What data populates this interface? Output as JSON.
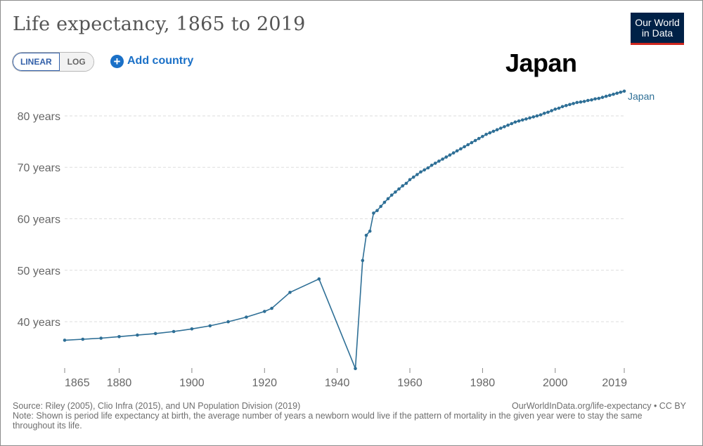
{
  "header": {
    "title": "Life expectancy, 1865 to 2019",
    "logo_line1": "Our World",
    "logo_line2": "in Data"
  },
  "controls": {
    "linear_label": "LINEAR",
    "log_label": "LOG",
    "add_country_label": "Add country",
    "add_country_icon": "plus-circle-icon"
  },
  "overlay": {
    "country_label": "Japan"
  },
  "colors": {
    "series": "#2e6f96",
    "grid": "#dddddd",
    "axis_text": "#555555",
    "brand": "#002147",
    "brand_accent": "#ce261e",
    "link": "#1a70c7"
  },
  "chart_data": {
    "type": "line",
    "title": "Life expectancy, 1865 to 2019",
    "xlabel": "",
    "ylabel": "",
    "xlim": [
      1865,
      2019
    ],
    "ylim": [
      31,
      86
    ],
    "grid": "horizontal dashed",
    "x_ticks": [
      1865,
      1880,
      1900,
      1920,
      1940,
      1960,
      1980,
      2000,
      2019
    ],
    "y_ticks": [
      {
        "value": 40,
        "label": "40 years"
      },
      {
        "value": 50,
        "label": "50 years"
      },
      {
        "value": 60,
        "label": "60 years"
      },
      {
        "value": 70,
        "label": "70 years"
      },
      {
        "value": 80,
        "label": "80 years"
      }
    ],
    "series": [
      {
        "name": "Japan",
        "label_position": "end-of-line",
        "points": [
          [
            1865,
            36.4
          ],
          [
            1870,
            36.6
          ],
          [
            1875,
            36.8
          ],
          [
            1880,
            37.1
          ],
          [
            1885,
            37.4
          ],
          [
            1890,
            37.7
          ],
          [
            1895,
            38.1
          ],
          [
            1900,
            38.6
          ],
          [
            1905,
            39.2
          ],
          [
            1910,
            40.0
          ],
          [
            1915,
            40.9
          ],
          [
            1920,
            42.0
          ],
          [
            1922,
            42.6
          ],
          [
            1927,
            45.7
          ],
          [
            1935,
            48.3
          ],
          [
            1945,
            30.9
          ],
          [
            1947,
            51.9
          ],
          [
            1948,
            56.8
          ],
          [
            1949,
            57.6
          ],
          [
            1950,
            61.1
          ],
          [
            1951,
            61.6
          ],
          [
            1952,
            62.4
          ],
          [
            1953,
            63.2
          ],
          [
            1954,
            63.9
          ],
          [
            1955,
            64.6
          ],
          [
            1956,
            65.2
          ],
          [
            1957,
            65.8
          ],
          [
            1958,
            66.4
          ],
          [
            1959,
            66.9
          ],
          [
            1960,
            67.6
          ],
          [
            1961,
            68.1
          ],
          [
            1962,
            68.6
          ],
          [
            1963,
            69.1
          ],
          [
            1964,
            69.5
          ],
          [
            1965,
            69.9
          ],
          [
            1966,
            70.4
          ],
          [
            1967,
            70.8
          ],
          [
            1968,
            71.2
          ],
          [
            1969,
            71.6
          ],
          [
            1970,
            72.0
          ],
          [
            1971,
            72.4
          ],
          [
            1972,
            72.8
          ],
          [
            1973,
            73.2
          ],
          [
            1974,
            73.6
          ],
          [
            1975,
            74.0
          ],
          [
            1976,
            74.4
          ],
          [
            1977,
            74.8
          ],
          [
            1978,
            75.2
          ],
          [
            1979,
            75.6
          ],
          [
            1980,
            76.0
          ],
          [
            1981,
            76.4
          ],
          [
            1982,
            76.7
          ],
          [
            1983,
            77.0
          ],
          [
            1984,
            77.3
          ],
          [
            1985,
            77.6
          ],
          [
            1986,
            77.9
          ],
          [
            1987,
            78.2
          ],
          [
            1988,
            78.5
          ],
          [
            1989,
            78.8
          ],
          [
            1990,
            79.0
          ],
          [
            1991,
            79.2
          ],
          [
            1992,
            79.4
          ],
          [
            1993,
            79.6
          ],
          [
            1994,
            79.8
          ],
          [
            1995,
            80.0
          ],
          [
            1996,
            80.2
          ],
          [
            1997,
            80.5
          ],
          [
            1998,
            80.7
          ],
          [
            1999,
            81.0
          ],
          [
            2000,
            81.3
          ],
          [
            2001,
            81.5
          ],
          [
            2002,
            81.8
          ],
          [
            2003,
            82.0
          ],
          [
            2004,
            82.2
          ],
          [
            2005,
            82.4
          ],
          [
            2006,
            82.6
          ],
          [
            2007,
            82.7
          ],
          [
            2008,
            82.8
          ],
          [
            2009,
            83.0
          ],
          [
            2010,
            83.1
          ],
          [
            2011,
            83.3
          ],
          [
            2012,
            83.4
          ],
          [
            2013,
            83.6
          ],
          [
            2014,
            83.8
          ],
          [
            2015,
            84.0
          ],
          [
            2016,
            84.2
          ],
          [
            2017,
            84.4
          ],
          [
            2018,
            84.6
          ],
          [
            2019,
            84.8
          ]
        ]
      }
    ]
  },
  "footer": {
    "source": "Source: Riley (2005), Clio Infra (2015), and UN Population Division (2019)",
    "url_license": "OurWorldInData.org/life-expectancy • CC BY",
    "note": "Note: Shown is period life expectancy at birth, the average number of years a newborn would live if the pattern of mortality in the given year were to stay the same throughout its life."
  }
}
